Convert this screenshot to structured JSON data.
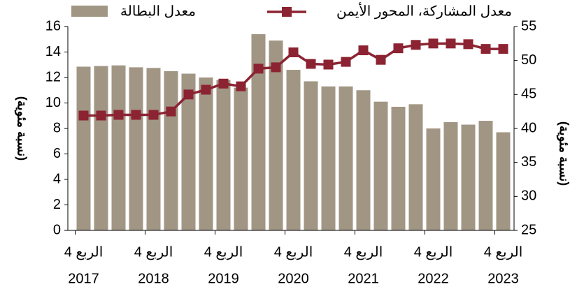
{
  "chart_data": {
    "type": "bar_line",
    "categories": [
      [
        "الربع 4",
        "2017"
      ],
      null,
      null,
      null,
      [
        "الربع 4",
        "2018"
      ],
      null,
      null,
      null,
      [
        "الربع 4",
        "2019"
      ],
      null,
      null,
      null,
      [
        "الربع 4",
        "2020"
      ],
      null,
      null,
      null,
      [
        "الربع 4",
        "2021"
      ],
      null,
      null,
      null,
      [
        "الربع 4",
        "2022"
      ],
      null,
      null,
      null,
      [
        "الربع 4",
        "2023"
      ]
    ],
    "series": [
      {
        "name": "معدل البطالة",
        "type": "bar",
        "color": "#a19684",
        "values": [
          12.85,
          12.9,
          12.95,
          12.8,
          12.75,
          12.5,
          12.3,
          12.0,
          11.8,
          11.2,
          15.4,
          14.9,
          12.6,
          11.7,
          11.3,
          11.3,
          11.0,
          10.1,
          9.7,
          9.9,
          8.0,
          8.5,
          8.3,
          8.6,
          7.7
        ]
      },
      {
        "name": "معدل المشاركة، المحور الأيمن",
        "type": "line",
        "axis": "y2",
        "color": "#8c2332",
        "values": [
          41.9,
          41.9,
          42.0,
          42.0,
          42.0,
          42.5,
          45.0,
          45.7,
          46.6,
          46.2,
          48.8,
          49.0,
          51.2,
          49.5,
          49.4,
          49.8,
          51.5,
          50.1,
          51.8,
          52.3,
          52.5,
          52.5,
          52.4,
          51.7,
          51.7
        ]
      }
    ],
    "ylim": [
      0,
      16
    ],
    "yticks": [
      0,
      2,
      4,
      6,
      8,
      10,
      12,
      14,
      16
    ],
    "y2lim": [
      25,
      55
    ],
    "y2ticks": [
      25,
      30,
      35,
      40,
      45,
      50,
      55
    ],
    "ylabel": "(نسبة مئوية)",
    "y2label": "(نسبة مئوية)"
  }
}
